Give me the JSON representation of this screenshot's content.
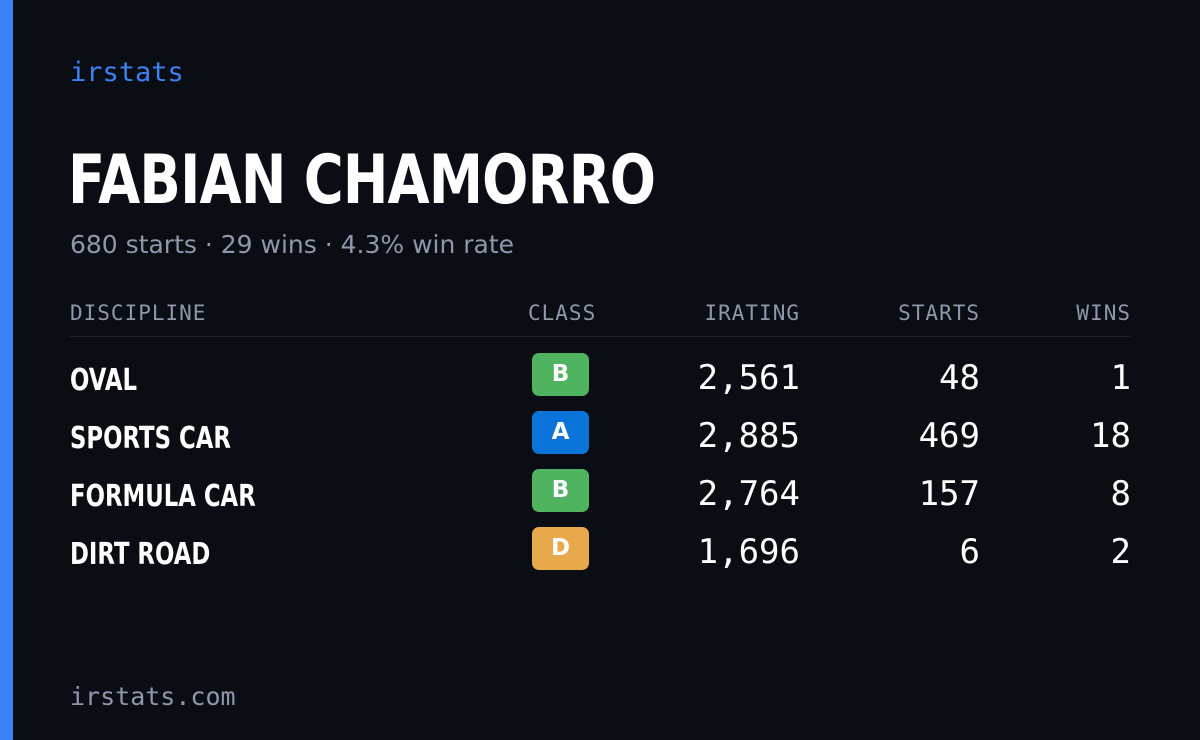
{
  "brand": "irstats",
  "driver": {
    "name": "FABIAN CHAMORRO",
    "summary": "680 starts · 29 wins · 4.3% win rate"
  },
  "table": {
    "headers": {
      "discipline": "DISCIPLINE",
      "class": "CLASS",
      "irating": "IRATING",
      "starts": "STARTS",
      "wins": "WINS"
    },
    "rows": [
      {
        "discipline": "OVAL",
        "class": "B",
        "class_color": "#4fb35f",
        "irating": "2,561",
        "starts": "48",
        "wins": "1"
      },
      {
        "discipline": "SPORTS CAR",
        "class": "A",
        "class_color": "#0a74d8",
        "irating": "2,885",
        "starts": "469",
        "wins": "18"
      },
      {
        "discipline": "FORMULA CAR",
        "class": "B",
        "class_color": "#4fb35f",
        "irating": "2,764",
        "starts": "157",
        "wins": "8"
      },
      {
        "discipline": "DIRT ROAD",
        "class": "D",
        "class_color": "#e8a84c",
        "irating": "1,696",
        "starts": "6",
        "wins": "2"
      }
    ]
  },
  "footer": {
    "url": "irstats.com"
  },
  "colors": {
    "accent": "#3b82f6",
    "background": "#0a0d14"
  }
}
